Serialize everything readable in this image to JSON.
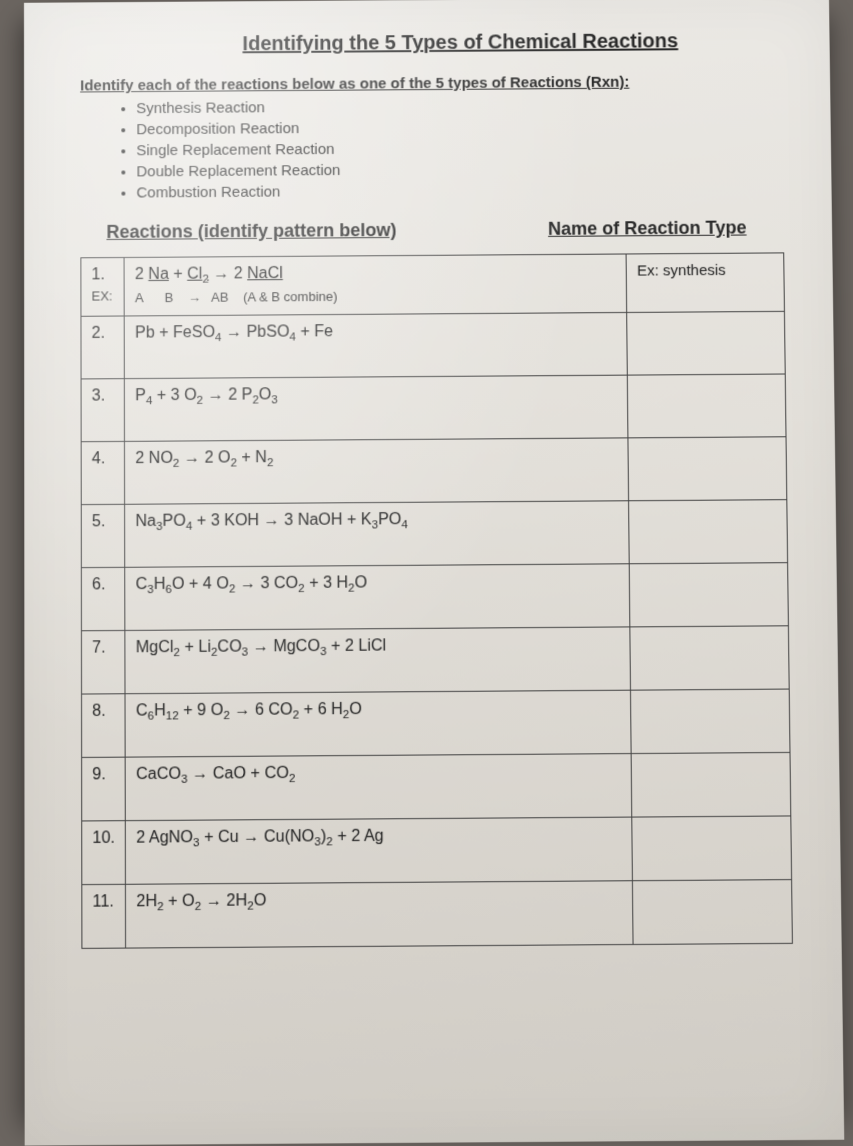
{
  "title": "Identifying the 5 Types of Chemical Reactions",
  "instruction": "Identify each of the reactions below as one of the 5 types of Reactions (Rxn):",
  "reaction_types": [
    "Synthesis Reaction",
    "Decomposition Reaction",
    "Single Replacement Reaction",
    "Double Replacement Reaction",
    "Combustion Reaction"
  ],
  "column_headers": {
    "left": "Reactions (identify pattern below)",
    "right": "Name of Reaction Type"
  },
  "example": {
    "num": "1.",
    "ex_label": "EX:",
    "reaction_html": "2 <span class='ul'>Na</span> + <span class='ul'>Cl<span class='sub'>2</span></span> → 2 <span class='ul'>NaCl</span>",
    "pattern_line": "A      B    →   AB    (A & B combine)",
    "answer": "Ex:  synthesis"
  },
  "rows": [
    {
      "num": "2.",
      "reaction_html": "Pb + FeSO<span class='sub'>4</span> → PbSO<span class='sub'>4</span> + Fe",
      "answer": ""
    },
    {
      "num": "3.",
      "reaction_html": "P<span class='sub'>4</span> +  3 O<span class='sub'>2</span> → 2 P<span class='sub'>2</span>O<span class='sub'>3</span>",
      "answer": ""
    },
    {
      "num": "4.",
      "reaction_html": "2 NO<span class='sub'>2</span> → 2 O<span class='sub'>2</span> + N<span class='sub'>2</span>",
      "answer": ""
    },
    {
      "num": "5.",
      "reaction_html": "Na<span class='sub'>3</span>PO<span class='sub'>4</span> + 3 KOH → 3 NaOH + K<span class='sub'>3</span>PO<span class='sub'>4</span>",
      "answer": ""
    },
    {
      "num": "6.",
      "reaction_html": "C<span class='sub'>3</span>H<span class='sub'>6</span>O + 4 O<span class='sub'>2</span> → 3 CO<span class='sub'>2</span> + 3 H<span class='sub'>2</span>O",
      "answer": ""
    },
    {
      "num": "7.",
      "reaction_html": "MgCl<span class='sub'>2</span> + Li<span class='sub'>2</span>CO<span class='sub'>3</span> → MgCO<span class='sub'>3</span> + 2 LiCl",
      "answer": ""
    },
    {
      "num": "8.",
      "reaction_html": "C<span class='sub'>6</span>H<span class='sub'>12</span> + 9 O<span class='sub'>2</span> → 6 CO<span class='sub'>2</span> + 6 H<span class='sub'>2</span>O",
      "answer": ""
    },
    {
      "num": "9.",
      "reaction_html": "CaCO<span class='sub'>3</span> → CaO + CO<span class='sub'>2</span>",
      "answer": ""
    },
    {
      "num": "10.",
      "reaction_html": "2 AgNO<span class='sub'>3</span> + Cu → Cu(NO<span class='sub'>3</span>)<span class='sub'>2</span> + 2 Ag",
      "answer": ""
    },
    {
      "num": "11.",
      "reaction_html": "2H<span class='sub'>2</span> + O<span class='sub'>2</span>  → 2H<span class='sub'>2</span>O",
      "answer": ""
    }
  ],
  "colors": {
    "page_bg_top": "#eceae6",
    "page_bg_bottom": "#cfcbc4",
    "backdrop": "#6b6560",
    "text": "#2a2a2a",
    "border": "#444444"
  }
}
